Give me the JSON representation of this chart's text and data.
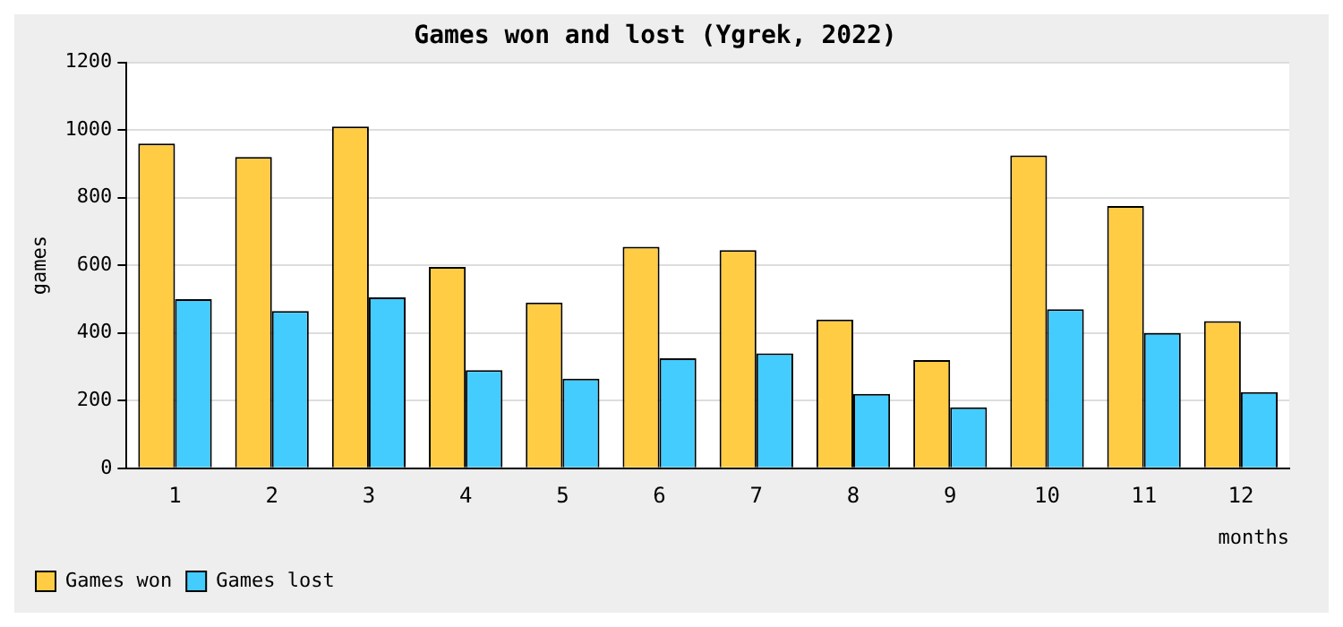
{
  "chart_data": {
    "type": "bar",
    "title": "Games won and lost (Ygrek, 2022)",
    "xlabel": "months",
    "ylabel": "games",
    "categories": [
      "1",
      "2",
      "3",
      "4",
      "5",
      "6",
      "7",
      "8",
      "9",
      "10",
      "11",
      "12"
    ],
    "series": [
      {
        "name": "Games won",
        "color": "#ffcc44",
        "values": [
          960,
          920,
          1010,
          595,
          490,
          655,
          645,
          440,
          320,
          925,
          775,
          435
        ]
      },
      {
        "name": "Games lost",
        "color": "#44ccff",
        "values": [
          500,
          465,
          505,
          290,
          265,
          325,
          340,
          220,
          180,
          470,
          400,
          225
        ]
      }
    ],
    "ylim": [
      0,
      1200
    ],
    "yticks": [
      0,
      200,
      400,
      600,
      800,
      1000,
      1200
    ],
    "grid": "y",
    "legend": "bottom left"
  }
}
